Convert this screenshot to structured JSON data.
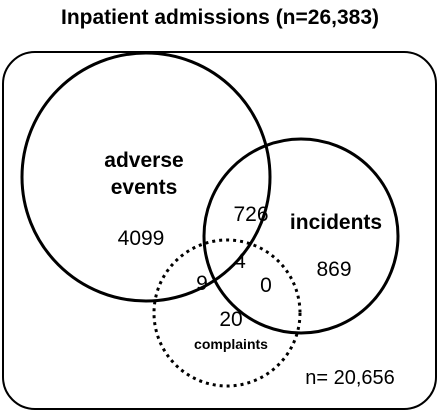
{
  "title": "Inpatient admissions (n=26,383)",
  "sets": {
    "adverse_events": {
      "label_line1": "adverse",
      "label_line2": "events"
    },
    "incidents": {
      "label": "incidents"
    },
    "complaints": {
      "label": "complaints"
    }
  },
  "regions": {
    "adverse_only": "4099",
    "incidents_only": "869",
    "complaints_only": "20",
    "adverse_incidents": "726",
    "adverse_complaints": "9",
    "incidents_complaints": "0",
    "all_three": "4"
  },
  "remainder": "n= 20,656"
}
